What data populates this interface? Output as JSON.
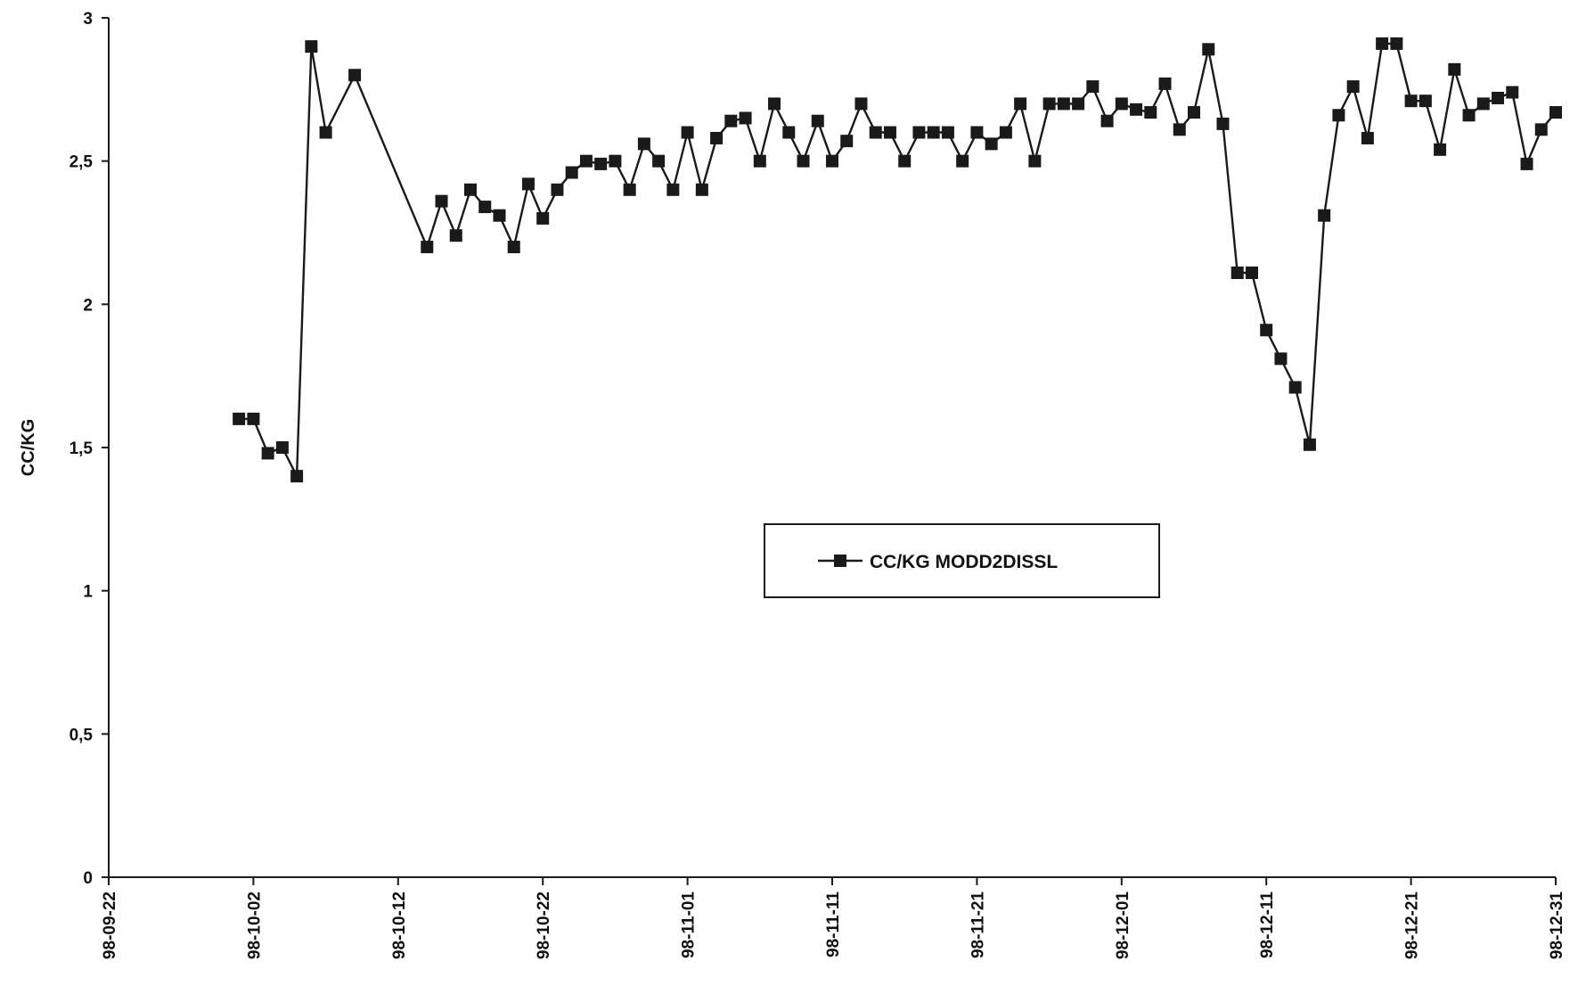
{
  "chart_data": {
    "type": "line",
    "title": "",
    "xlabel": "",
    "ylabel": "CC/KG",
    "xlim": [
      "98-09-22",
      "98-12-31"
    ],
    "ylim": [
      0,
      3
    ],
    "x_tick_labels": [
      "98-09-22",
      "98-10-02",
      "98-10-12",
      "98-10-22",
      "98-11-01",
      "98-11-11",
      "98-11-21",
      "98-12-01",
      "98-12-11",
      "98-12-21",
      "98-12-31"
    ],
    "y_tick_labels": [
      "0",
      "0,5",
      "1",
      "1,5",
      "2",
      "2,5",
      "3"
    ],
    "y_tick_values": [
      0,
      0.5,
      1,
      1.5,
      2,
      2.5,
      3
    ],
    "grid": false,
    "legend_position": "center",
    "colors": {
      "line": "#1a1a1a",
      "marker": "#1a1a1a"
    },
    "series": [
      {
        "name": "CC/KG MODD2DISSL",
        "marker": "square",
        "points": [
          [
            "98-10-01",
            1.6
          ],
          [
            "98-10-02",
            1.6
          ],
          [
            "98-10-03",
            1.48
          ],
          [
            "98-10-04",
            1.5
          ],
          [
            "98-10-05",
            1.4
          ],
          [
            "98-10-06",
            2.9
          ],
          [
            "98-10-07",
            2.6
          ],
          [
            "98-10-09",
            2.8
          ],
          [
            "98-10-14",
            2.2
          ],
          [
            "98-10-15",
            2.36
          ],
          [
            "98-10-16",
            2.24
          ],
          [
            "98-10-17",
            2.4
          ],
          [
            "98-10-18",
            2.34
          ],
          [
            "98-10-19",
            2.31
          ],
          [
            "98-10-20",
            2.2
          ],
          [
            "98-10-21",
            2.42
          ],
          [
            "98-10-22",
            2.3
          ],
          [
            "98-10-23",
            2.4
          ],
          [
            "98-10-24",
            2.46
          ],
          [
            "98-10-25",
            2.5
          ],
          [
            "98-10-26",
            2.49
          ],
          [
            "98-10-27",
            2.5
          ],
          [
            "98-10-28",
            2.4
          ],
          [
            "98-10-29",
            2.56
          ],
          [
            "98-10-30",
            2.5
          ],
          [
            "98-10-31",
            2.4
          ],
          [
            "98-11-01",
            2.6
          ],
          [
            "98-11-02",
            2.4
          ],
          [
            "98-11-03",
            2.58
          ],
          [
            "98-11-04",
            2.64
          ],
          [
            "98-11-05",
            2.65
          ],
          [
            "98-11-06",
            2.5
          ],
          [
            "98-11-07",
            2.7
          ],
          [
            "98-11-08",
            2.6
          ],
          [
            "98-11-09",
            2.5
          ],
          [
            "98-11-10",
            2.64
          ],
          [
            "98-11-11",
            2.5
          ],
          [
            "98-11-12",
            2.57
          ],
          [
            "98-11-13",
            2.7
          ],
          [
            "98-11-14",
            2.6
          ],
          [
            "98-11-15",
            2.6
          ],
          [
            "98-11-16",
            2.5
          ],
          [
            "98-11-17",
            2.6
          ],
          [
            "98-11-18",
            2.6
          ],
          [
            "98-11-19",
            2.6
          ],
          [
            "98-11-20",
            2.5
          ],
          [
            "98-11-21",
            2.6
          ],
          [
            "98-11-22",
            2.56
          ],
          [
            "98-11-23",
            2.6
          ],
          [
            "98-11-24",
            2.7
          ],
          [
            "98-11-25",
            2.5
          ],
          [
            "98-11-26",
            2.7
          ],
          [
            "98-11-27",
            2.7
          ],
          [
            "98-11-28",
            2.7
          ],
          [
            "98-11-29",
            2.76
          ],
          [
            "98-11-30",
            2.64
          ],
          [
            "98-12-01",
            2.7
          ],
          [
            "98-12-02",
            2.68
          ],
          [
            "98-12-03",
            2.67
          ],
          [
            "98-12-04",
            2.77
          ],
          [
            "98-12-05",
            2.61
          ],
          [
            "98-12-06",
            2.67
          ],
          [
            "98-12-07",
            2.89
          ],
          [
            "98-12-08",
            2.63
          ],
          [
            "98-12-09",
            2.11
          ],
          [
            "98-12-10",
            2.11
          ],
          [
            "98-12-11",
            1.91
          ],
          [
            "98-12-12",
            1.81
          ],
          [
            "98-12-13",
            1.71
          ],
          [
            "98-12-14",
            1.51
          ],
          [
            "98-12-15",
            2.31
          ],
          [
            "98-12-16",
            2.66
          ],
          [
            "98-12-17",
            2.76
          ],
          [
            "98-12-18",
            2.58
          ],
          [
            "98-12-19",
            2.91
          ],
          [
            "98-12-20",
            2.91
          ],
          [
            "98-12-21",
            2.71
          ],
          [
            "98-12-22",
            2.71
          ],
          [
            "98-12-23",
            2.54
          ],
          [
            "98-12-24",
            2.82
          ],
          [
            "98-12-25",
            2.66
          ],
          [
            "98-12-26",
            2.7
          ],
          [
            "98-12-27",
            2.72
          ],
          [
            "98-12-28",
            2.74
          ],
          [
            "98-12-29",
            2.49
          ],
          [
            "98-12-30",
            2.61
          ],
          [
            "98-12-31",
            2.67
          ]
        ]
      }
    ]
  }
}
